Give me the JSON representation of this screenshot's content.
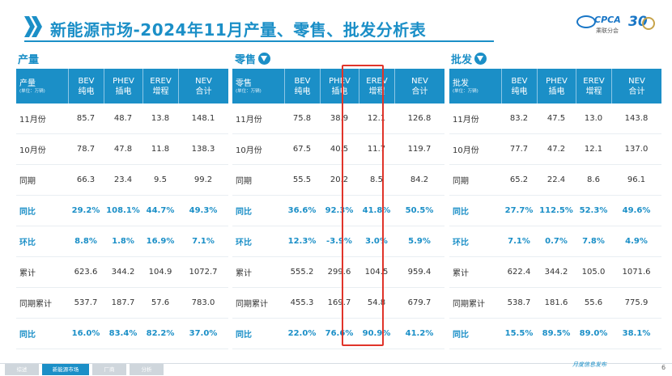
{
  "title": "新能源市场-2024年11月产量、零售、批发分析表",
  "logo": {
    "brand": "CPCA",
    "org": "乘联分会",
    "anniversary": "30"
  },
  "headers": {
    "first_label": [
      "产量",
      "零售",
      "批发"
    ],
    "unit": "(单位：万辆)",
    "cols": [
      {
        "line1": "BEV",
        "line2": "纯电"
      },
      {
        "line1": "PHEV",
        "line2": "插电"
      },
      {
        "line1": "EREV",
        "line2": "增程"
      },
      {
        "line1": "NEV",
        "line2": "合计"
      }
    ]
  },
  "sections": [
    {
      "label": "产量",
      "rows": [
        {
          "label": "11月份",
          "values": [
            "85.7",
            "48.7",
            "13.8",
            "148.1"
          ],
          "highlight": false
        },
        {
          "label": "10月份",
          "values": [
            "78.7",
            "47.8",
            "11.8",
            "138.3"
          ],
          "highlight": false
        },
        {
          "label": "同期",
          "values": [
            "66.3",
            "23.4",
            "9.5",
            "99.2"
          ],
          "highlight": false
        },
        {
          "label": "同比",
          "values": [
            "29.2%",
            "108.1%",
            "44.7%",
            "49.3%"
          ],
          "highlight": true
        },
        {
          "label": "环比",
          "values": [
            "8.8%",
            "1.8%",
            "16.9%",
            "7.1%"
          ],
          "highlight": true
        },
        {
          "label": "累计",
          "values": [
            "623.6",
            "344.2",
            "104.9",
            "1072.7"
          ],
          "highlight": false
        },
        {
          "label": "同期累计",
          "values": [
            "537.7",
            "187.7",
            "57.6",
            "783.0"
          ],
          "highlight": false
        },
        {
          "label": "同比",
          "values": [
            "16.0%",
            "83.4%",
            "82.2%",
            "37.0%"
          ],
          "highlight": true
        }
      ]
    },
    {
      "label": "零售",
      "rows": [
        {
          "label": "11月份",
          "values": [
            "75.8",
            "38.9",
            "12.1",
            "126.8"
          ],
          "highlight": false
        },
        {
          "label": "10月份",
          "values": [
            "67.5",
            "40.5",
            "11.7",
            "119.7"
          ],
          "highlight": false
        },
        {
          "label": "同期",
          "values": [
            "55.5",
            "20.2",
            "8.5",
            "84.2"
          ],
          "highlight": false
        },
        {
          "label": "同比",
          "values": [
            "36.6%",
            "92.3%",
            "41.8%",
            "50.5%"
          ],
          "highlight": true
        },
        {
          "label": "环比",
          "values": [
            "12.3%",
            "-3.9%",
            "3.0%",
            "5.9%"
          ],
          "highlight": true
        },
        {
          "label": "累计",
          "values": [
            "555.2",
            "299.6",
            "104.5",
            "959.4"
          ],
          "highlight": false
        },
        {
          "label": "同期累计",
          "values": [
            "455.3",
            "169.7",
            "54.8",
            "679.7"
          ],
          "highlight": false
        },
        {
          "label": "同比",
          "values": [
            "22.0%",
            "76.6%",
            "90.9%",
            "41.2%"
          ],
          "highlight": true
        }
      ]
    },
    {
      "label": "批发",
      "rows": [
        {
          "label": "11月份",
          "values": [
            "83.2",
            "47.5",
            "13.0",
            "143.8"
          ],
          "highlight": false
        },
        {
          "label": "10月份",
          "values": [
            "77.7",
            "47.2",
            "12.1",
            "137.0"
          ],
          "highlight": false
        },
        {
          "label": "同期",
          "values": [
            "65.2",
            "22.4",
            "8.6",
            "96.1"
          ],
          "highlight": false
        },
        {
          "label": "同比",
          "values": [
            "27.7%",
            "112.5%",
            "52.3%",
            "49.6%"
          ],
          "highlight": true
        },
        {
          "label": "环比",
          "values": [
            "7.1%",
            "0.7%",
            "7.8%",
            "4.9%"
          ],
          "highlight": true
        },
        {
          "label": "累计",
          "values": [
            "622.4",
            "344.2",
            "105.0",
            "1071.6"
          ],
          "highlight": false
        },
        {
          "label": "同期累计",
          "values": [
            "538.7",
            "181.6",
            "55.6",
            "775.9"
          ],
          "highlight": false
        },
        {
          "label": "同比",
          "values": [
            "15.5%",
            "89.5%",
            "89.0%",
            "38.1%"
          ],
          "highlight": true
        }
      ]
    }
  ],
  "footer": {
    "tabs": [
      "综述",
      "新能源市场",
      "厂商",
      "分析"
    ],
    "active_tab": 1,
    "publisher": "月度信息发布",
    "page_number": "6"
  },
  "colors": {
    "accent": "#1b8fc7",
    "highlight_box": "#e0342a"
  }
}
